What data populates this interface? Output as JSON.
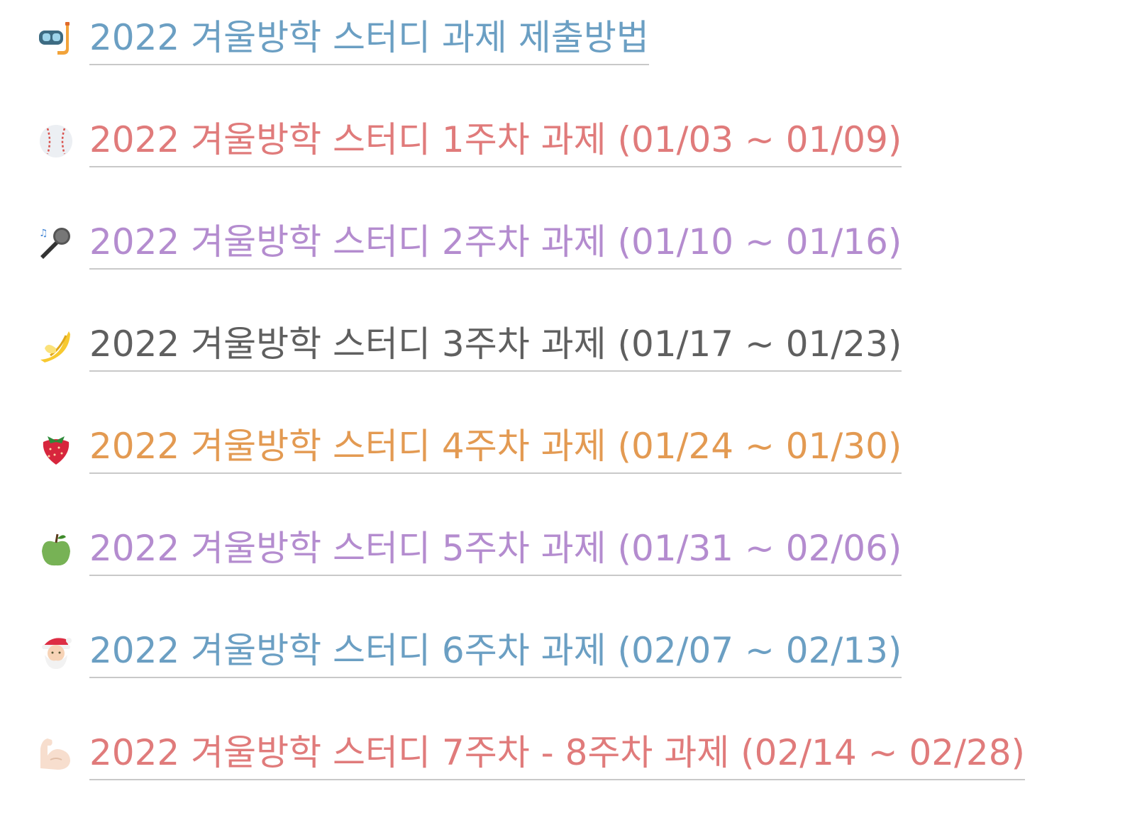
{
  "items": [
    {
      "icon": "diving-mask-icon",
      "label": "2022 겨울방학 스터디 과제 제출방법",
      "color": "#6b9fc3"
    },
    {
      "icon": "baseball-icon",
      "label": "2022 겨울방학 스터디 1주차 과제 (01/03 ~ 01/09)",
      "color": "#e07b7b"
    },
    {
      "icon": "microphone-icon",
      "label": "2022 겨울방학 스터디 2주차 과제 (01/10 ~ 01/16)",
      "color": "#b48ccf"
    },
    {
      "icon": "banana-icon",
      "label": "2022 겨울방학 스터디 3주차 과제 (01/17 ~ 01/23)",
      "color": "#5f5f5f"
    },
    {
      "icon": "strawberry-icon",
      "label": "2022 겨울방학 스터디 4주차 과제 (01/24 ~ 01/30)",
      "color": "#e39a52"
    },
    {
      "icon": "green-apple-icon",
      "label": "2022 겨울방학 스터디 5주차 과제 (01/31 ~ 02/06)",
      "color": "#b48ccf"
    },
    {
      "icon": "santa-icon",
      "label": "2022 겨울방학 스터디 6주차 과제 (02/07 ~ 02/13)",
      "color": "#6b9fc3"
    },
    {
      "icon": "flexed-biceps-icon",
      "label": "2022 겨울방학 스터디 7주차 - 8주차 과제 (02/14 ~ 02/28)",
      "color": "#e07b7b"
    }
  ]
}
